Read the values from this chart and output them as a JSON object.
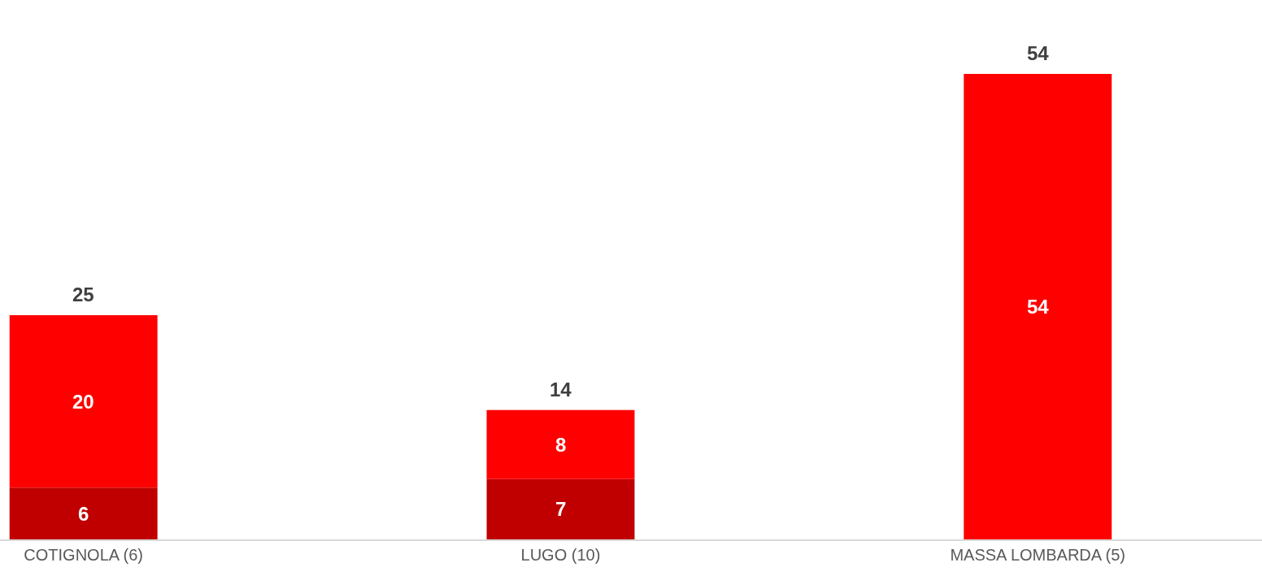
{
  "chart_data": {
    "type": "bar",
    "stacked": true,
    "categories": [
      "COTIGNOLA (6)",
      "LUGO (10)",
      "MASSA LOMBARDA (5)"
    ],
    "series": [
      {
        "color": "#c00000",
        "values": [
          6,
          7,
          0
        ],
        "value_labels": [
          "6",
          "7",
          null
        ]
      },
      {
        "color": "#ff0000",
        "values": [
          20,
          8,
          54
        ],
        "value_labels": [
          "20",
          "8",
          "54"
        ]
      }
    ],
    "totals": [
      "25",
      "14",
      "54"
    ],
    "tick_labels": "x"
  }
}
